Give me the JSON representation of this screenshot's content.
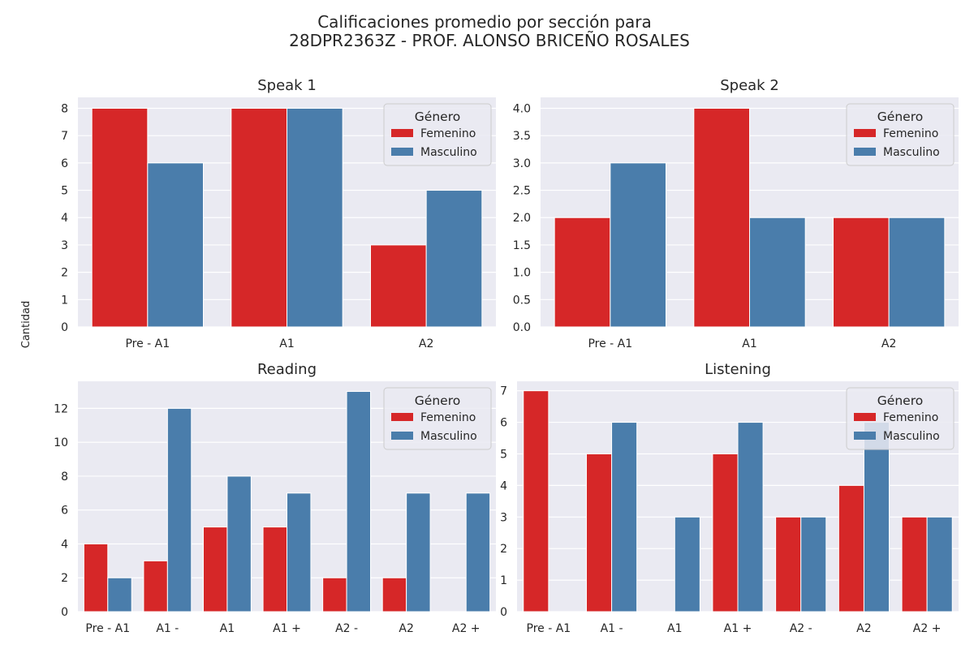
{
  "figure": {
    "title_line1": "Calificaciones promedio por sección para",
    "title_line2": "28DPR2363Z - PROF. ALONSO BRICEÑO ROSALES",
    "ylabel": "Cantidad"
  },
  "colors": {
    "panel_bg": "#eaeaf2",
    "grid": "#ffffff",
    "femenino": "#d62728",
    "masculino": "#4a7dab"
  },
  "chart_data": [
    {
      "type": "bar",
      "title": "Speak 1",
      "categories": [
        "Pre - A1",
        "A1",
        "A2"
      ],
      "series": [
        {
          "name": "Femenino",
          "values": [
            8,
            8,
            3
          ]
        },
        {
          "name": "Masculino",
          "values": [
            6,
            8,
            5
          ]
        }
      ],
      "ylim": [
        0,
        8.4
      ],
      "yticks": [
        "0",
        "1",
        "2",
        "3",
        "4",
        "5",
        "6",
        "7",
        "8"
      ],
      "ytick_values": [
        0,
        1,
        2,
        3,
        4,
        5,
        6,
        7,
        8
      ],
      "legend_title": "Género",
      "legend_position": "top-right",
      "grid": true
    },
    {
      "type": "bar",
      "title": "Speak 2",
      "categories": [
        "Pre - A1",
        "A1",
        "A2"
      ],
      "series": [
        {
          "name": "Femenino",
          "values": [
            2,
            4,
            2
          ]
        },
        {
          "name": "Masculino",
          "values": [
            3,
            2,
            2
          ]
        }
      ],
      "ylim": [
        0,
        4.2
      ],
      "yticks": [
        "0.0",
        "0.5",
        "1.0",
        "1.5",
        "2.0",
        "2.5",
        "3.0",
        "3.5",
        "4.0"
      ],
      "ytick_values": [
        0,
        0.5,
        1,
        1.5,
        2,
        2.5,
        3,
        3.5,
        4
      ],
      "legend_title": "Género",
      "legend_position": "top-right",
      "grid": true
    },
    {
      "type": "bar",
      "title": "Reading",
      "categories": [
        "Pre - A1",
        "A1 -",
        "A1",
        "A1 +",
        "A2 -",
        "A2",
        "A2 +"
      ],
      "series": [
        {
          "name": "Femenino",
          "values": [
            4,
            3,
            5,
            5,
            2,
            2,
            null
          ]
        },
        {
          "name": "Masculino",
          "values": [
            2,
            12,
            8,
            7,
            13,
            7,
            7
          ]
        }
      ],
      "ylim": [
        0,
        13.6
      ],
      "yticks": [
        "0",
        "2",
        "4",
        "6",
        "8",
        "10",
        "12"
      ],
      "ytick_values": [
        0,
        2,
        4,
        6,
        8,
        10,
        12
      ],
      "legend_title": "Género",
      "legend_position": "top-right",
      "grid": true
    },
    {
      "type": "bar",
      "title": "Listening",
      "categories": [
        "Pre - A1",
        "A1 -",
        "A1",
        "A1 +",
        "A2 -",
        "A2",
        "A2 +"
      ],
      "series": [
        {
          "name": "Femenino",
          "values": [
            7,
            5,
            null,
            5,
            3,
            4,
            3
          ]
        },
        {
          "name": "Masculino",
          "values": [
            null,
            6,
            3,
            6,
            3,
            6,
            3
          ]
        }
      ],
      "ylim": [
        0,
        7.3
      ],
      "yticks": [
        "0",
        "1",
        "2",
        "3",
        "4",
        "5",
        "6",
        "7"
      ],
      "ytick_values": [
        0,
        1,
        2,
        3,
        4,
        5,
        6,
        7
      ],
      "legend_title": "Género",
      "legend_position": "top-right",
      "grid": true
    }
  ]
}
